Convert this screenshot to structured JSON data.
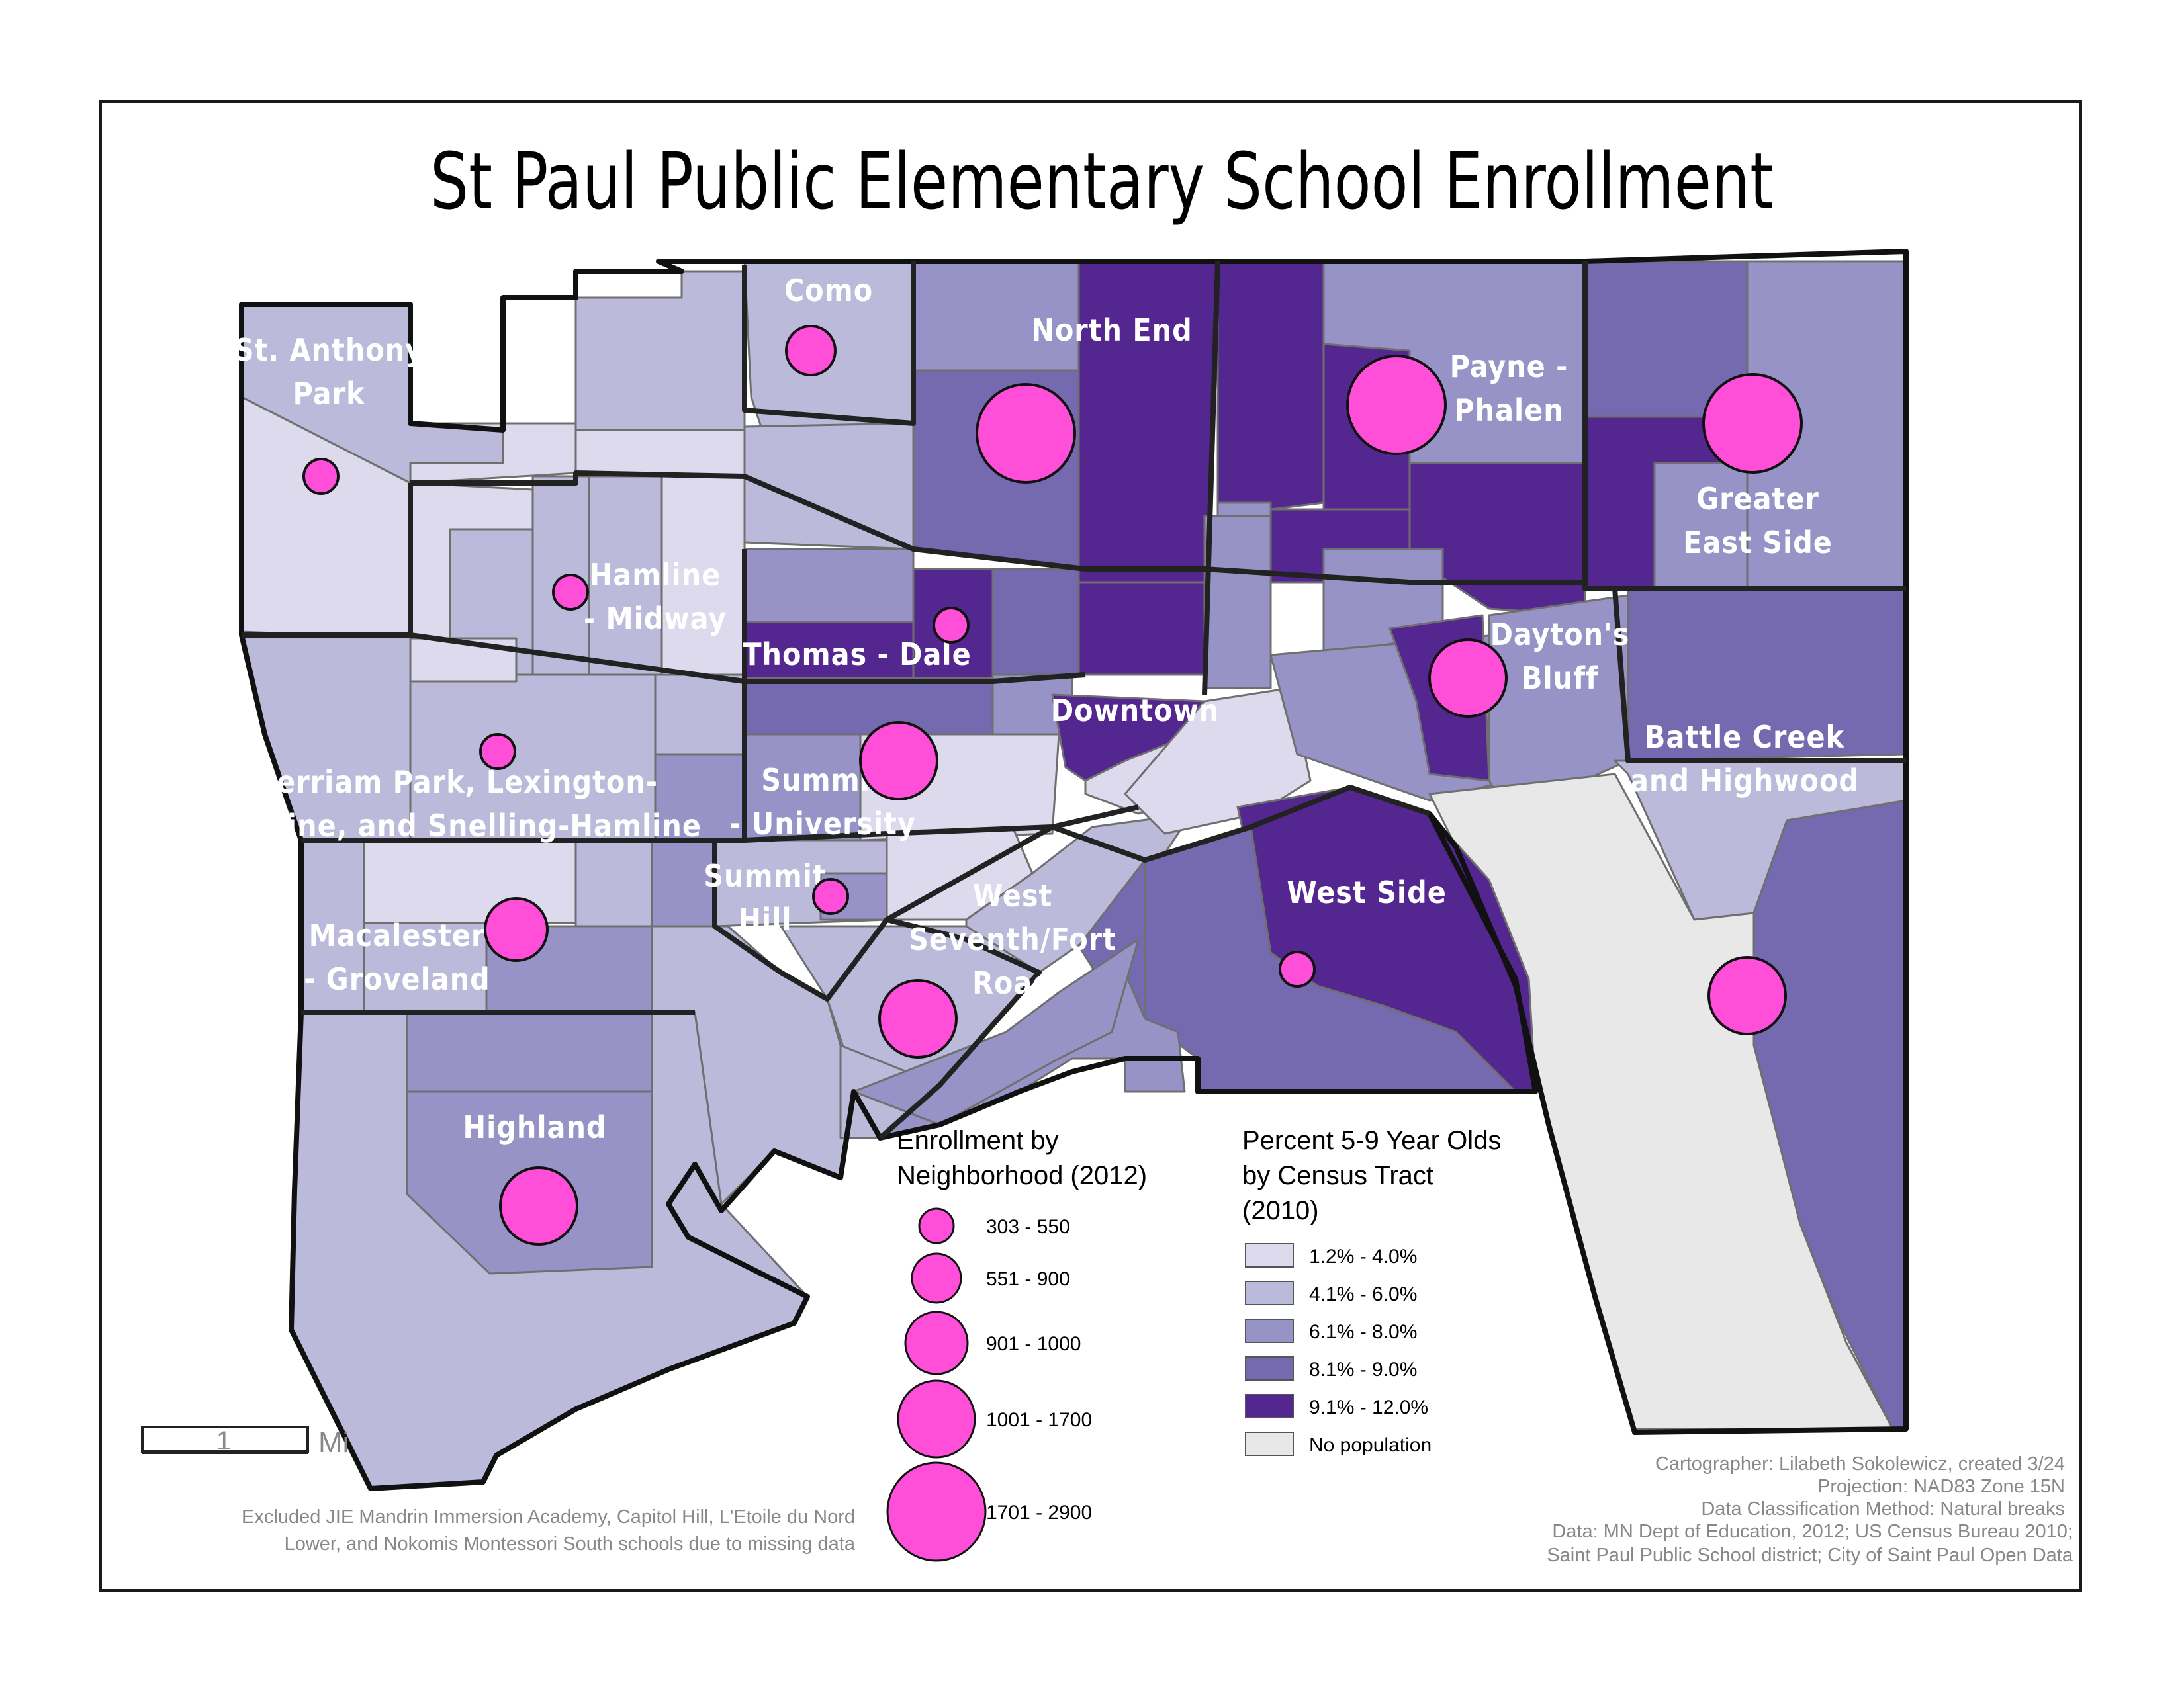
{
  "title": "St Paul Public Elementary School Enrollment",
  "neighborhoods": [
    {
      "name": "Como",
      "lines": [
        "Como"
      ]
    },
    {
      "name": "North End",
      "lines": [
        "North End"
      ]
    },
    {
      "name": "St. Anthony Park",
      "lines": [
        "St. Anthony",
        "Park"
      ]
    },
    {
      "name": "Payne - Phalen",
      "lines": [
        "Payne -",
        "Phalen"
      ]
    },
    {
      "name": "Greater East Side",
      "lines": [
        "Greater",
        "East Side"
      ]
    },
    {
      "name": "Hamline - Midway",
      "lines": [
        "Hamline",
        "- Midway"
      ]
    },
    {
      "name": "Thomas - Dale",
      "lines": [
        "Thomas - Dale"
      ]
    },
    {
      "name": "Dayton's Bluff",
      "lines": [
        "Dayton's",
        "Bluff"
      ]
    },
    {
      "name": "Downtown",
      "lines": [
        "Downtown"
      ]
    },
    {
      "name": "Battle Creek and Highwood",
      "lines": [
        "Battle Creek",
        "and Highwood"
      ]
    },
    {
      "name": "Merriam Park, Lexington-Hamline, and Snelling-Hamline",
      "lines": [
        "Merriam Park, Lexington-",
        "Hamline, and Snelling-Hamline"
      ]
    },
    {
      "name": "Summit - University",
      "lines": [
        "Summit",
        "- University"
      ]
    },
    {
      "name": "West Side",
      "lines": [
        "West Side"
      ]
    },
    {
      "name": "Summit Hill",
      "lines": [
        "Summit",
        "Hill"
      ]
    },
    {
      "name": "West Seventh/Fort Road",
      "lines": [
        "West",
        "Seventh/Fort",
        "Road"
      ]
    },
    {
      "name": "Macalester - Groveland",
      "lines": [
        "Macalester",
        "- Groveland"
      ]
    },
    {
      "name": "Highland",
      "lines": [
        "Highland"
      ]
    }
  ],
  "enrollment_legend": {
    "title_lines": [
      "Enrollment by",
      "Neighborhood (2012)"
    ],
    "classes": [
      "303 - 550",
      "551 - 900",
      "901 - 1000",
      "1001 - 1700",
      "1701 - 2900"
    ]
  },
  "tract_legend": {
    "title_lines": [
      "Percent 5-9 Year Olds",
      "by Census Tract",
      "(2010)"
    ],
    "classes": [
      {
        "label": "1.2% - 4.0%",
        "color": "#dddaed"
      },
      {
        "label": "4.1% - 6.0%",
        "color": "#bcbadb"
      },
      {
        "label": "6.1% - 8.0%",
        "color": "#9793c7"
      },
      {
        "label": "8.1% - 9.0%",
        "color": "#7569b0"
      },
      {
        "label": "9.1% - 12.0%",
        "color": "#54268f"
      },
      {
        "label": "No population",
        "color": "#e8e8e8"
      }
    ]
  },
  "symbol_color": "#ff4fd8",
  "scale_bar": {
    "value": "1",
    "unit": "Mi"
  },
  "note_lines": [
    "Excluded JIE Mandrin Immersion Academy, Capitol Hill, L'Etoile du Nord",
    "Lower, and Nokomis Montessori South schools due to missing data"
  ],
  "credits_lines": [
    "Cartographer: Lilabeth Sokolewicz, created 3/24",
    "Projection: NAD83 Zone 15N",
    "Data Classification Method: Natural breaks",
    "Data: MN Dept of Education, 2012; US Census Bureau 2010;",
    "Saint Paul Public School district; City of Saint Paul Open Data"
  ]
}
